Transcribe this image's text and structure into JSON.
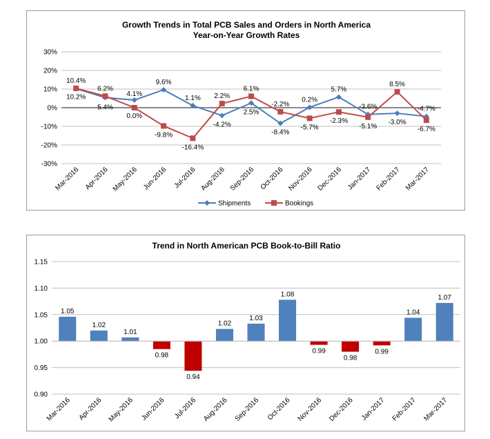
{
  "chart_data": [
    {
      "type": "line",
      "title": "Growth Trends in Total PCB Sales and Orders in North America",
      "subtitle": "Year-on-Year Growth Rates",
      "categories": [
        "Mar-2016",
        "Apr-2016",
        "May-2016",
        "Jun-2016",
        "Jul-2016",
        "Aug-2016",
        "Sep-2016",
        "Oct-2016",
        "Nov-2016",
        "Dec-2016",
        "Jan-2017",
        "Feb-2017",
        "Mar-2017"
      ],
      "ylim": [
        -30,
        30
      ],
      "yticks": [
        -30,
        -20,
        -10,
        0,
        10,
        20,
        30
      ],
      "ytick_labels": [
        "-30%",
        "-20%",
        "-10%",
        "0%",
        "10%",
        "20%",
        "30%"
      ],
      "grid": true,
      "legend": "bottom",
      "series": [
        {
          "name": "Shipments",
          "color": "#4a7ebb",
          "marker": "diamond",
          "values": [
            10.2,
            5.4,
            4.1,
            9.6,
            1.1,
            -4.2,
            2.5,
            -8.4,
            0.2,
            5.7,
            -3.6,
            -3.0,
            -4.7
          ],
          "labels": [
            "10.2%",
            "5.4%",
            "4.1%",
            "9.6%",
            "1.1%",
            "-4.2%",
            "2.5%",
            "-8.4%",
            "0.2%",
            "5.7%",
            "-3.6%",
            "-3.0%",
            "-4.7%"
          ]
        },
        {
          "name": "Bookings",
          "color": "#be4b48",
          "marker": "square",
          "values": [
            10.4,
            6.2,
            0.0,
            -9.8,
            -16.4,
            2.2,
            6.1,
            -2.2,
            -5.7,
            -2.3,
            -5.1,
            8.5,
            -6.7
          ],
          "labels": [
            "10.4%",
            "6.2%",
            "0.0%",
            "-9.8%",
            "-16.4%",
            "2.2%",
            "6.1%",
            "-2.2%",
            "-5.7%",
            "-2.3%",
            "-5.1%",
            "8.5%",
            "-6.7%"
          ]
        }
      ]
    },
    {
      "type": "bar",
      "title": "Trend in North American PCB Book-to-Bill Ratio",
      "categories": [
        "Mar-2016",
        "Apr-2016",
        "May-2016",
        "Jun-2016",
        "Jul-2016",
        "Aug-2016",
        "Sep-2016",
        "Oct-2016",
        "Nov-2016",
        "Dec-2016",
        "Jan-2017",
        "Feb-2017",
        "Mar-2017"
      ],
      "values": [
        1.046,
        1.02,
        1.007,
        0.985,
        0.944,
        1.023,
        1.033,
        1.078,
        0.993,
        0.98,
        0.992,
        1.044,
        1.072
      ],
      "labels": [
        "1.05",
        "1.02",
        "1.01",
        "0.98",
        "0.94",
        "1.02",
        "1.03",
        "1.08",
        "0.99",
        "0.98",
        "0.99",
        "1.04",
        "1.07"
      ],
      "baseline": 1.0,
      "ylim": [
        0.9,
        1.15
      ],
      "yticks": [
        0.9,
        0.95,
        1.0,
        1.05,
        1.1,
        1.15
      ],
      "ytick_labels": [
        "0.90",
        "0.95",
        "1.00",
        "1.05",
        "1.10",
        "1.15"
      ],
      "grid": true,
      "colors": {
        "above": "#4f81bd",
        "below": "#c00000"
      }
    }
  ]
}
